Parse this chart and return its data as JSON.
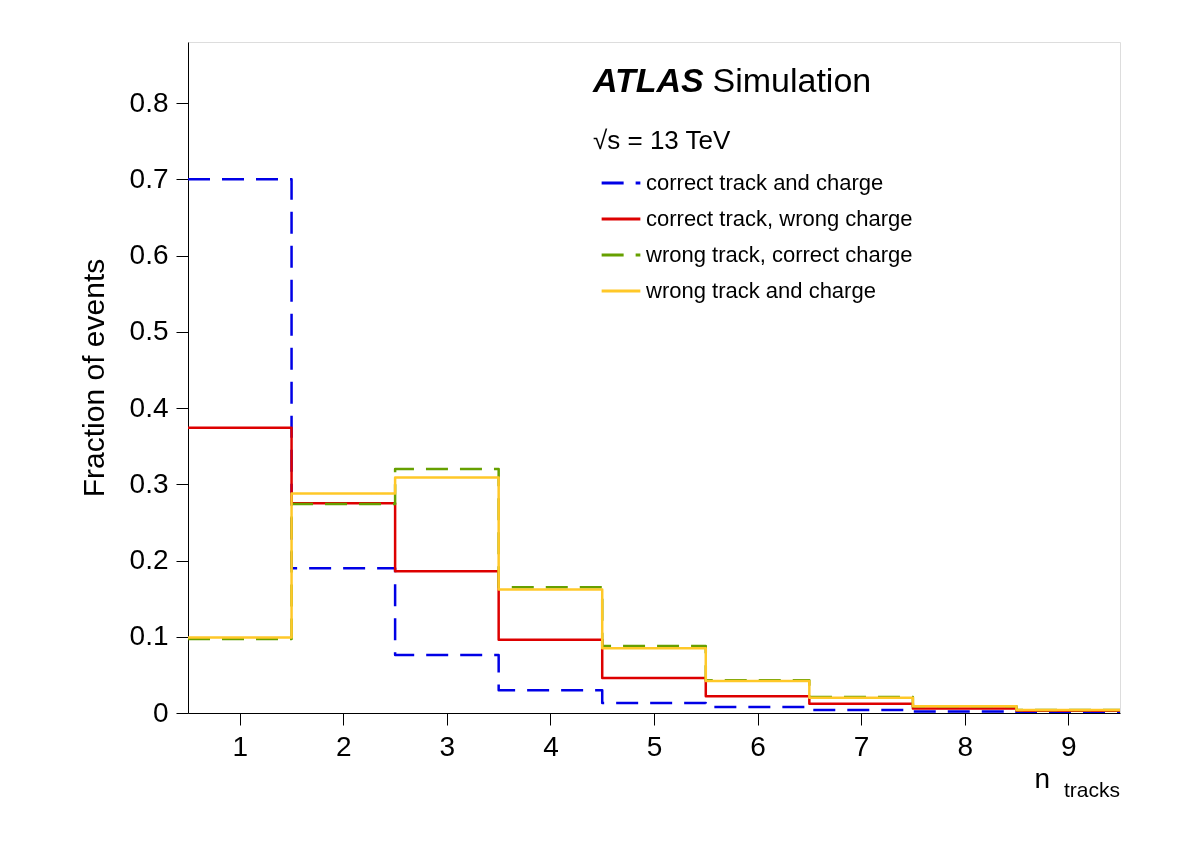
{
  "chart_data": {
    "type": "histogram",
    "xlabel": "n$_{tracks}$",
    "ylabel": "Fraction of events",
    "annotations": [
      "ATLAS Simulation",
      "√s = 13 TeV"
    ],
    "bins": [
      0.5,
      1.5,
      2.5,
      3.5,
      4.5,
      5.5,
      6.5,
      7.5,
      8.5,
      9.5
    ],
    "series": [
      {
        "name": "correct track and charge",
        "color": "#0000e6",
        "line_style": "dashed",
        "values": [
          0.7,
          0.19,
          0.076,
          0.03,
          0.013,
          0.008,
          0.004,
          0.002,
          0.001
        ]
      },
      {
        "name": "correct track, wrong charge",
        "color": "#dd0000",
        "line_style": "solid",
        "values": [
          0.374,
          0.275,
          0.186,
          0.096,
          0.046,
          0.022,
          0.012,
          0.006,
          0.003
        ]
      },
      {
        "name": "wrong track, correct charge",
        "color": "#66a000",
        "line_style": "dashed",
        "values": [
          0.097,
          0.274,
          0.32,
          0.165,
          0.088,
          0.043,
          0.021,
          0.009,
          0.004
        ]
      },
      {
        "name": "wrong track and charge",
        "color": "#ffc828",
        "line_style": "solid",
        "values": [
          0.099,
          0.288,
          0.309,
          0.162,
          0.085,
          0.042,
          0.02,
          0.009,
          0.004
        ]
      }
    ],
    "xlim": [
      0.5,
      9.5
    ],
    "ylim": [
      0,
      0.88
    ],
    "xticks": [
      1,
      2,
      3,
      4,
      5,
      6,
      7,
      8,
      9
    ],
    "yticks": [
      0,
      0.1,
      0.2,
      0.3,
      0.4,
      0.5,
      0.6,
      0.7,
      0.8
    ],
    "grid": false,
    "legend": "top right"
  }
}
